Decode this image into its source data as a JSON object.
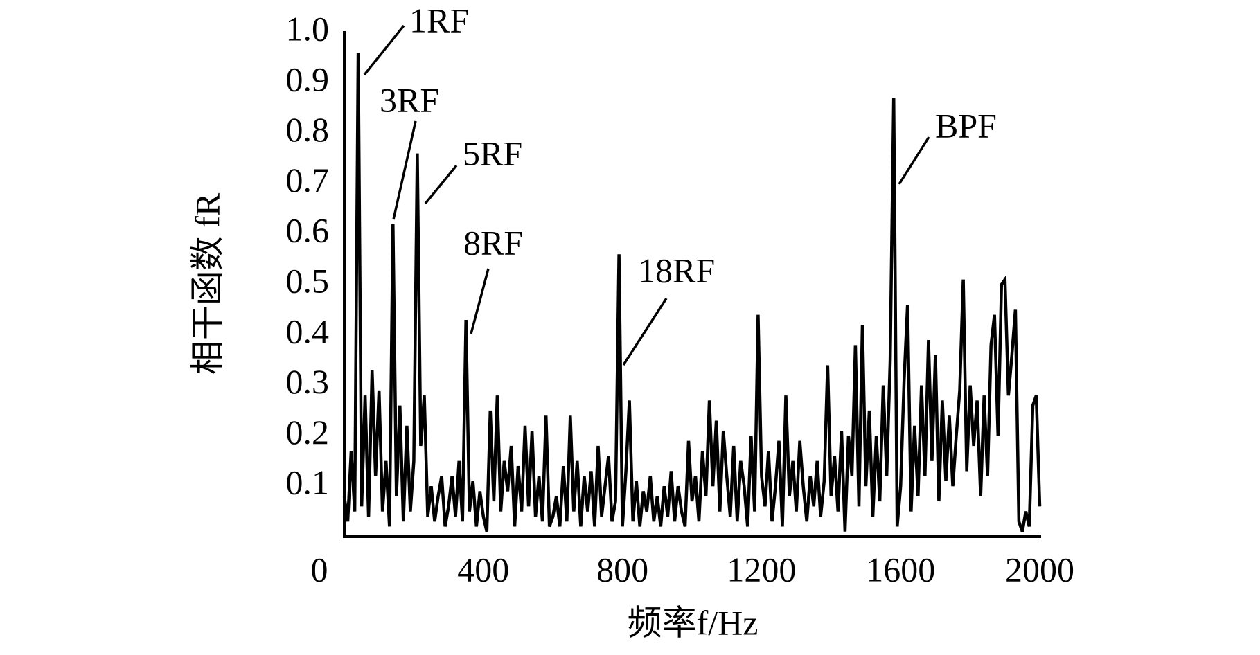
{
  "chart_data": {
    "type": "line",
    "xlabel": "频率f/Hz",
    "ylabel": "相干函数 fR",
    "xlim": [
      0,
      2000
    ],
    "ylim": [
      0,
      1
    ],
    "xticks": [
      0,
      400,
      800,
      1200,
      1600,
      2000
    ],
    "yticks": [
      0.1,
      0.2,
      0.3,
      0.4,
      0.5,
      0.6,
      0.7,
      0.8,
      0.9,
      {
        "value": 1,
        "label": "1.0"
      }
    ],
    "grid": false,
    "annotations": [
      "1RF",
      "3RF",
      "5RF",
      "8RF",
      "18RF",
      "BPF"
    ],
    "series": [
      {
        "color": "#000000",
        "x": [
          0,
          10,
          20,
          30,
          40,
          50,
          60,
          70,
          80,
          90,
          100,
          110,
          120,
          130,
          140,
          150,
          160,
          170,
          180,
          190,
          200,
          210,
          220,
          230,
          240,
          250,
          260,
          270,
          280,
          290,
          300,
          310,
          320,
          330,
          340,
          350,
          360,
          370,
          380,
          390,
          400,
          410,
          420,
          430,
          440,
          450,
          460,
          470,
          480,
          490,
          500,
          510,
          520,
          530,
          540,
          550,
          560,
          570,
          580,
          590,
          600,
          610,
          620,
          630,
          640,
          650,
          660,
          670,
          680,
          690,
          700,
          710,
          720,
          730,
          740,
          750,
          760,
          770,
          780,
          790,
          800,
          810,
          820,
          830,
          840,
          850,
          860,
          870,
          880,
          890,
          900,
          910,
          920,
          930,
          940,
          950,
          960,
          970,
          980,
          990,
          1000,
          1010,
          1020,
          1030,
          1040,
          1050,
          1060,
          1070,
          1080,
          1090,
          1100,
          1110,
          1120,
          1130,
          1140,
          1150,
          1160,
          1170,
          1180,
          1190,
          1200,
          1210,
          1220,
          1230,
          1240,
          1250,
          1260,
          1270,
          1280,
          1290,
          1300,
          1310,
          1320,
          1330,
          1340,
          1350,
          1360,
          1370,
          1380,
          1390,
          1400,
          1410,
          1420,
          1430,
          1440,
          1450,
          1460,
          1470,
          1480,
          1490,
          1500,
          1510,
          1520,
          1530,
          1540,
          1550,
          1560,
          1570,
          1580,
          1590,
          1600,
          1610,
          1620,
          1630,
          1640,
          1650,
          1660,
          1670,
          1680,
          1690,
          1700,
          1710,
          1720,
          1730,
          1740,
          1750,
          1760,
          1770,
          1780,
          1790,
          1800,
          1810,
          1820,
          1830,
          1840,
          1850,
          1860,
          1870,
          1880,
          1890,
          1900,
          1910,
          1920,
          1930,
          1940,
          1950,
          1960,
          1970,
          1980,
          1990,
          2000
        ],
        "values": [
          0.08,
          0.03,
          0.17,
          0.05,
          0.96,
          0.06,
          0.28,
          0.04,
          0.33,
          0.12,
          0.29,
          0.05,
          0.15,
          0.02,
          0.62,
          0.08,
          0.26,
          0.03,
          0.22,
          0.05,
          0.15,
          0.76,
          0.18,
          0.28,
          0.04,
          0.1,
          0.03,
          0.08,
          0.12,
          0.02,
          0.06,
          0.12,
          0.04,
          0.15,
          0.03,
          0.43,
          0.05,
          0.11,
          0.02,
          0.09,
          0.04,
          0.01,
          0.25,
          0.07,
          0.28,
          0.05,
          0.15,
          0.09,
          0.18,
          0.02,
          0.14,
          0.05,
          0.22,
          0.06,
          0.21,
          0.04,
          0.12,
          0.03,
          0.24,
          0.02,
          0.04,
          0.08,
          0.02,
          0.14,
          0.03,
          0.24,
          0.05,
          0.15,
          0.02,
          0.12,
          0.05,
          0.13,
          0.02,
          0.18,
          0.04,
          0.1,
          0.16,
          0.03,
          0.07,
          0.56,
          0.02,
          0.13,
          0.27,
          0.03,
          0.11,
          0.02,
          0.09,
          0.05,
          0.12,
          0.03,
          0.08,
          0.02,
          0.1,
          0.04,
          0.13,
          0.03,
          0.1,
          0.05,
          0.02,
          0.19,
          0.07,
          0.12,
          0.03,
          0.17,
          0.08,
          0.27,
          0.1,
          0.23,
          0.05,
          0.21,
          0.12,
          0.04,
          0.18,
          0.03,
          0.15,
          0.1,
          0.02,
          0.2,
          0.05,
          0.44,
          0.12,
          0.06,
          0.17,
          0.03,
          0.1,
          0.19,
          0.02,
          0.28,
          0.08,
          0.15,
          0.05,
          0.19,
          0.1,
          0.03,
          0.12,
          0.06,
          0.15,
          0.04,
          0.11,
          0.34,
          0.08,
          0.16,
          0.05,
          0.21,
          0.01,
          0.2,
          0.12,
          0.38,
          0.06,
          0.42,
          0.1,
          0.25,
          0.04,
          0.2,
          0.07,
          0.3,
          0.12,
          0.35,
          0.87,
          0.02,
          0.1,
          0.31,
          0.46,
          0.05,
          0.22,
          0.08,
          0.3,
          0.12,
          0.39,
          0.15,
          0.36,
          0.07,
          0.27,
          0.11,
          0.24,
          0.1,
          0.2,
          0.29,
          0.51,
          0.13,
          0.3,
          0.18,
          0.27,
          0.08,
          0.28,
          0.12,
          0.38,
          0.44,
          0.2,
          0.5,
          0.51,
          0.28,
          0.36,
          0.45,
          0.03,
          0.01,
          0.05,
          0.02,
          0.26,
          0.28,
          0.06
        ]
      }
    ]
  }
}
